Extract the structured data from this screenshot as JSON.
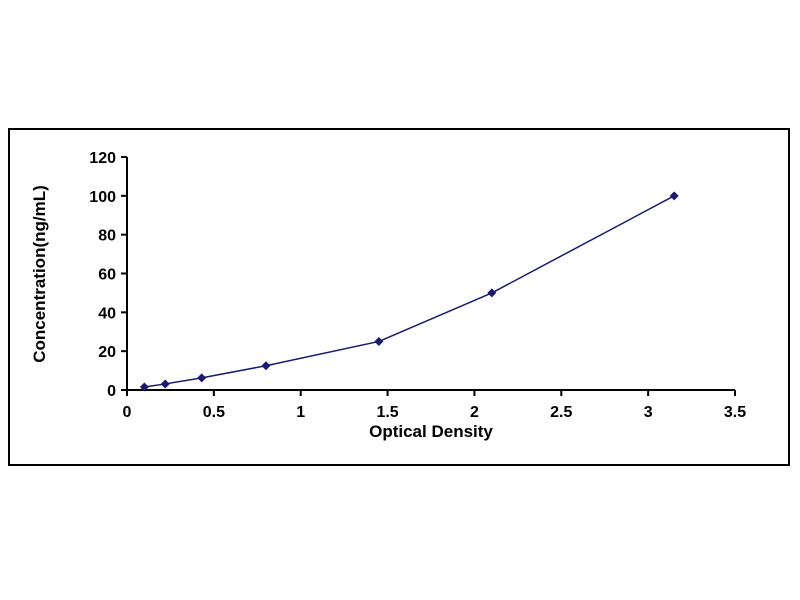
{
  "chart_data": {
    "type": "line",
    "title": "",
    "xlabel": "Optical Density",
    "ylabel": "Concentration(ng/mL)",
    "x": [
      0.1,
      0.22,
      0.43,
      0.8,
      1.45,
      2.1,
      3.15
    ],
    "y": [
      1.56,
      3.12,
      6.25,
      12.5,
      25,
      50,
      100
    ],
    "xlim": [
      0,
      3.5
    ],
    "ylim": [
      0,
      120
    ],
    "x_ticks": [
      0,
      0.5,
      1,
      1.5,
      2,
      2.5,
      3,
      3.5
    ],
    "y_ticks": [
      0,
      20,
      40,
      60,
      80,
      100,
      120
    ],
    "x_tick_labels": [
      "0",
      "0.5",
      "1",
      "1.5",
      "2",
      "2.5",
      "3",
      "3.5"
    ],
    "y_tick_labels": [
      "0",
      "20",
      "40",
      "60",
      "80",
      "100",
      "120"
    ],
    "line_color": "#1a1a6e",
    "marker": "diamond",
    "grid": false,
    "legend": "none"
  }
}
